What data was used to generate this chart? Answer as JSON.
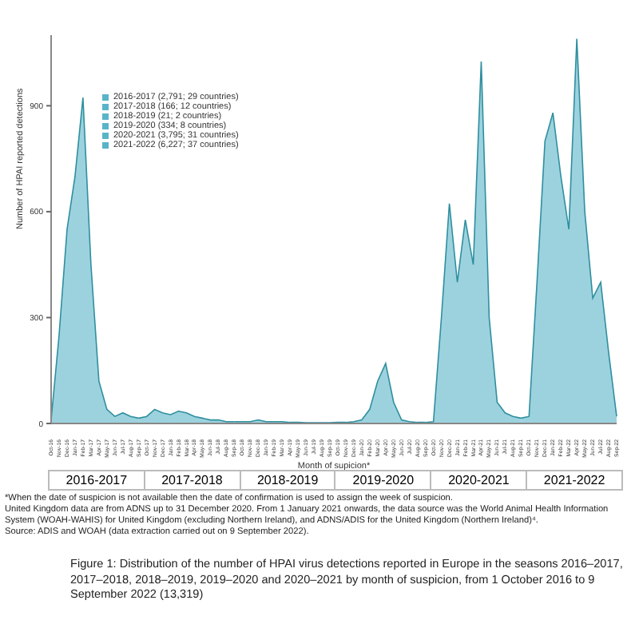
{
  "chart_data": {
    "type": "area",
    "xlabel": "Month of supicion*",
    "ylabel": "Number of HPAI reported detections",
    "categories": [
      "Oct-16",
      "Nov-16",
      "Dec-16",
      "Jan-17",
      "Feb-17",
      "Mar-17",
      "Apr-17",
      "May-17",
      "Jun-17",
      "Jul-17",
      "Aug-17",
      "Sep-17",
      "Oct-17",
      "Nov-17",
      "Dec-17",
      "Jan-18",
      "Feb-18",
      "Mar-18",
      "Apr-18",
      "May-18",
      "Jun-18",
      "Jul-18",
      "Aug-18",
      "Sep-18",
      "Oct-18",
      "Nov-18",
      "Dec-18",
      "Jan-19",
      "Feb-19",
      "Mar-19",
      "Apr-19",
      "May-19",
      "Jun-19",
      "Jul-19",
      "Aug-19",
      "Sep-19",
      "Oct-19",
      "Nov-19",
      "Dec-19",
      "Jan-20",
      "Feb-20",
      "Mar-20",
      "Apr-20",
      "May-20",
      "Jun-20",
      "Jul-20",
      "Aug-20",
      "Sep-20",
      "Oct-20",
      "Nov-20",
      "Dec-20",
      "Jan-21",
      "Feb-21",
      "Mar-21",
      "Apr-21",
      "May-21",
      "Jun-21",
      "Jul-21",
      "Aug-21",
      "Sep-21",
      "Oct-21",
      "Nov-21",
      "Dec-21",
      "Jan-22",
      "Feb-22",
      "Mar-22",
      "Apr-22",
      "May-22",
      "Jun-22",
      "Jul-22",
      "Aug-22",
      "Sep-22"
    ],
    "series": [
      {
        "name": "2016-2017 (2,791; 29 countries)",
        "color": "#5ab4c8",
        "values": [
          10,
          250,
          550,
          700,
          923,
          450,
          120,
          40,
          20,
          30,
          20,
          15,
          null,
          null,
          null,
          null,
          null,
          null,
          null,
          null,
          null,
          null,
          null,
          null,
          null,
          null,
          null,
          null,
          null,
          null,
          null,
          null,
          null,
          null,
          null,
          null,
          null,
          null,
          null,
          null,
          null,
          null,
          null,
          null,
          null,
          null,
          null,
          null,
          null,
          null,
          null,
          null,
          null,
          null,
          null,
          null,
          null,
          null,
          null,
          null,
          null,
          null,
          null,
          null,
          null,
          null,
          null,
          null,
          null,
          null,
          null,
          null
        ]
      },
      {
        "name": "2017-2018 (166; 12 countries)",
        "color": "#5ab4c8",
        "values": [
          null,
          null,
          null,
          null,
          null,
          null,
          null,
          null,
          null,
          null,
          null,
          15,
          20,
          40,
          30,
          25,
          35,
          30,
          20,
          15,
          10,
          10,
          5,
          5,
          null,
          null,
          null,
          null,
          null,
          null,
          null,
          null,
          null,
          null,
          null,
          null,
          null,
          null,
          null,
          null,
          null,
          null,
          null,
          null,
          null,
          null,
          null,
          null,
          null,
          null,
          null,
          null,
          null,
          null,
          null,
          null,
          null,
          null,
          null,
          null,
          null,
          null,
          null,
          null,
          null,
          null,
          null,
          null,
          null,
          null,
          null,
          null
        ]
      },
      {
        "name": "2018-2019 (21; 2 countries)",
        "color": "#5ab4c8",
        "values": [
          null,
          null,
          null,
          null,
          null,
          null,
          null,
          null,
          null,
          null,
          null,
          null,
          null,
          null,
          null,
          null,
          null,
          null,
          null,
          null,
          null,
          null,
          null,
          5,
          5,
          5,
          10,
          5,
          5,
          5,
          3,
          3,
          2,
          2,
          2,
          2,
          null,
          null,
          null,
          null,
          null,
          null,
          null,
          null,
          null,
          null,
          null,
          null,
          null,
          null,
          null,
          null,
          null,
          null,
          null,
          null,
          null,
          null,
          null,
          null,
          null,
          null,
          null,
          null,
          null,
          null,
          null,
          null,
          null,
          null,
          null,
          null
        ]
      },
      {
        "name": "2019-2020 (334; 8 countries)",
        "color": "#5ab4c8",
        "values": [
          null,
          null,
          null,
          null,
          null,
          null,
          null,
          null,
          null,
          null,
          null,
          null,
          null,
          null,
          null,
          null,
          null,
          null,
          null,
          null,
          null,
          null,
          null,
          null,
          null,
          null,
          null,
          null,
          null,
          null,
          null,
          null,
          null,
          null,
          null,
          2,
          3,
          3,
          5,
          10,
          40,
          120,
          170,
          60,
          10,
          5,
          3,
          3,
          null,
          null,
          null,
          null,
          null,
          null,
          null,
          null,
          null,
          null,
          null,
          null,
          null,
          null,
          null,
          null,
          null,
          null,
          null,
          null,
          null,
          null,
          null,
          null
        ]
      },
      {
        "name": "2020-2021 (3,795; 31 countries)",
        "color": "#5ab4c8",
        "values": [
          null,
          null,
          null,
          null,
          null,
          null,
          null,
          null,
          null,
          null,
          null,
          null,
          null,
          null,
          null,
          null,
          null,
          null,
          null,
          null,
          null,
          null,
          null,
          null,
          null,
          null,
          null,
          null,
          null,
          null,
          null,
          null,
          null,
          null,
          null,
          null,
          null,
          null,
          null,
          null,
          null,
          null,
          null,
          null,
          null,
          null,
          null,
          3,
          5,
          300,
          623,
          400,
          577,
          450,
          1025,
          300,
          60,
          30,
          20,
          15,
          null,
          null,
          null,
          null,
          null,
          null,
          null,
          null,
          null,
          null,
          null,
          null
        ]
      },
      {
        "name": "2021-2022 (6,227; 37 countries)",
        "color": "#5ab4c8",
        "values": [
          null,
          null,
          null,
          null,
          null,
          null,
          null,
          null,
          null,
          null,
          null,
          null,
          null,
          null,
          null,
          null,
          null,
          null,
          null,
          null,
          null,
          null,
          null,
          null,
          null,
          null,
          null,
          null,
          null,
          null,
          null,
          null,
          null,
          null,
          null,
          null,
          null,
          null,
          null,
          null,
          null,
          null,
          null,
          null,
          null,
          null,
          null,
          null,
          null,
          null,
          null,
          null,
          null,
          null,
          null,
          null,
          null,
          null,
          null,
          15,
          20,
          400,
          800,
          880,
          700,
          550,
          1090,
          600,
          355,
          400,
          200,
          20
        ]
      }
    ],
    "ylim": [
      0,
      1100
    ],
    "yticks": [
      0,
      300,
      600,
      900
    ],
    "legend": "top left",
    "grid": false,
    "annotations": [
      "2016-2017",
      "2017-2018",
      "2018-2019",
      "2019-2020",
      "2020-2021",
      "2021-2022",
      "*When the date of suspicion is not available then the date of confirmation is used to assign the week of suspicion.",
      "United Kingdom data are from ADNS up to 31 December 2020. From 1 January 2021 onwards, the data source was the World Animal Health Information System (WOAH-WAHIS) for United Kingdom (excluding Northern Ireland), and ADNS/ADIS for the United Kingdom (Northern Ireland)⁴.",
      "Source: ADIS and WOAH (data extraction carried out on 9 September 2022).",
      "Figure 1: Distribution of the number of HPAI virus detections reported in Europe in the seasons 2016–2017, 2017–2018, 2018–2019, 2019–2020 and 2020–2021 by month of suspicion, from 1 October 2016 to 9 September 2022 (13,319)"
    ]
  }
}
